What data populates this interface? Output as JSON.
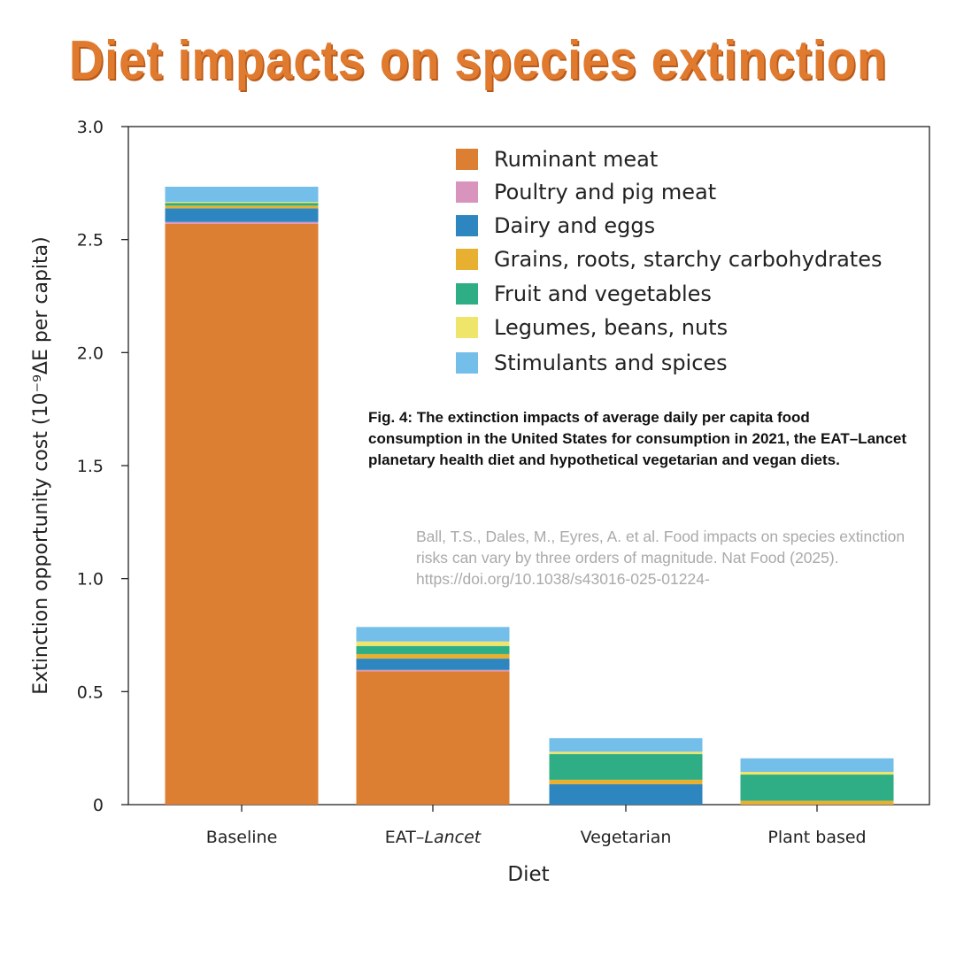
{
  "title": "Diet impacts on species extinction",
  "caption": "Fig. 4: The extinction impacts of average daily per capita food consumption in the United States for consumption in 2021, the EAT–Lancet planetary health diet and hypothetical vegetarian and vegan diets.",
  "citation": "Ball, T.S., Dales, M., Eyres, A. et al. Food impacts on species extinction risks can vary by three orders of magnitude. Nat Food (2025). https://doi.org/10.1038/s43016-025-01224-",
  "chart_data": {
    "type": "bar",
    "stacked": true,
    "xlabel": "Diet",
    "ylabel": "Extinction opportunity cost (10⁻⁹ΔE per capita)",
    "ylim": [
      0,
      3.0
    ],
    "yticks": [
      "0",
      "0.5",
      "1.0",
      "1.5",
      "2.0",
      "2.5",
      "3.0"
    ],
    "grid": false,
    "legend_position": "top-right",
    "categories": [
      "Baseline",
      "EAT–Lancet",
      "Vegetarian",
      "Plant based"
    ],
    "series": [
      {
        "name": "Ruminant meat",
        "color": "#dd7f32",
        "values": [
          2.57,
          0.59,
          0,
          0
        ]
      },
      {
        "name": "Poultry and pig meat",
        "color": "#d994bd",
        "values": [
          0.008,
          0.006,
          0,
          0
        ]
      },
      {
        "name": "Dairy and eggs",
        "color": "#2e86c1",
        "values": [
          0.06,
          0.05,
          0.09,
          0
        ]
      },
      {
        "name": "Grains, roots, starchy carbohydrates",
        "color": "#e8b030",
        "values": [
          0.012,
          0.02,
          0.02,
          0.017
        ]
      },
      {
        "name": "Fruit and vegetables",
        "color": "#2fae85",
        "values": [
          0.012,
          0.036,
          0.114,
          0.116
        ]
      },
      {
        "name": "Legumes, beans, nuts",
        "color": "#efe56a",
        "values": [
          0.005,
          0.02,
          0.01,
          0.012
        ]
      },
      {
        "name": "Stimulants and spices",
        "color": "#74bfe9",
        "values": [
          0.067,
          0.064,
          0.06,
          0.06
        ]
      }
    ]
  }
}
